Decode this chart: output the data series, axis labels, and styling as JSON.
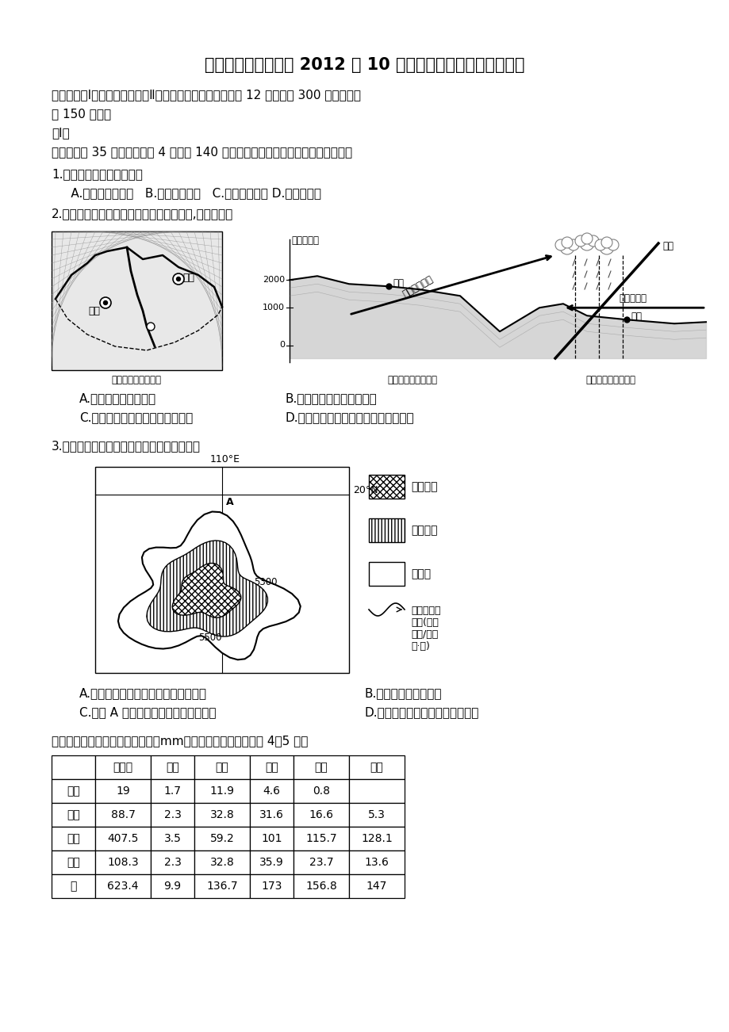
{
  "title": "茂名市第四中学高三 2012 年 10 月高考模拟考试文科综合试卷",
  "line1": "本试卷分第Ⅰ卷（选择题）和第Ⅱ卷（非选择题）两部分。共 12 页，满分 300 分。考试用",
  "line2": "时 150 分钟。",
  "line3": "第Ⅰ卷",
  "line4": "一、本题共 35 小题，每小题 4 分，共 140 分，每小题只有一个最符合要求的答案。",
  "q1": "1.东南沿海登陆的台风不会",
  "q1_opts": "     A.带来沿海风暴潮   B.诱发地质灾害   C.缓解高温酷暑 D.引发沙尘暴",
  "q2": "2.云贵高原在冬季常出现下图所示天气系统,从图中可知",
  "q2_a": "A.右图中剖面是东西向",
  "q2_b": "B.昆明冬季多晴朗温暖天气",
  "q2_c": "C.云贵高原地势自东北向西南倾斜",
  "q2_d": "D.昆明与贵阳冬半年均以冷湿天气为主",
  "q3": "3.读下图某岛略图，从图中提供的信息可判断",
  "q3_a": "A.地势中间高四周低，地形以高原为主",
  "q3_b": "B.河流流程短，落差小",
  "q3_c": "C.图中 A 地每年有一次的阳光直射机会",
  "q3_d": "D.全年晴好天气西南部多于东北部",
  "q4": "我国某区域四季各季平均降水量（mm）数据如下表。据此回答 4～5 题。",
  "tbl_headers": [
    "",
    "总雨量",
    "微雨",
    "小雨",
    "中雨",
    "大雨",
    "暴雨"
  ],
  "tbl_rows": [
    [
      "冬季",
      "19",
      "1.7",
      "11.9",
      "4.6",
      "0.8",
      ""
    ],
    [
      "春季",
      "88.7",
      "2.3",
      "32.8",
      "31.6",
      "16.6",
      "5.3"
    ],
    [
      "夏季",
      "407.5",
      "3.5",
      "59.2",
      "101",
      "115.7",
      "128.1"
    ],
    [
      "秋季",
      "108.3",
      "2.3",
      "32.8",
      "35.9",
      "23.7",
      "13.6"
    ],
    [
      "年",
      "623.4",
      "9.9",
      "136.7",
      "173",
      "156.8",
      "147"
    ]
  ],
  "bg": "#ffffff",
  "fg": "#000000"
}
